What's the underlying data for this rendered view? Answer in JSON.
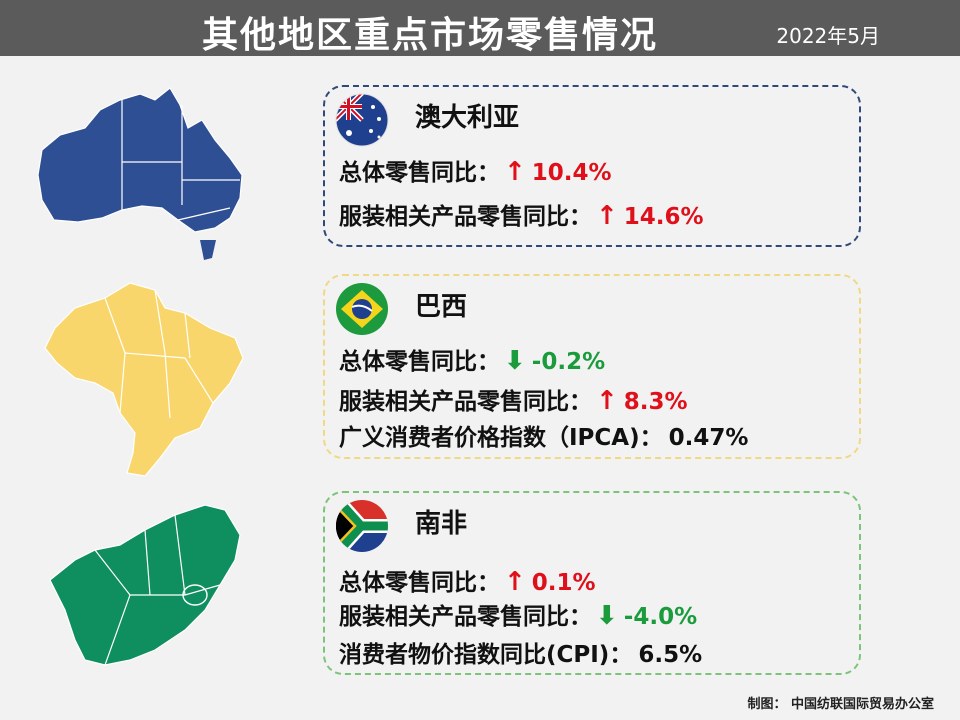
{
  "header": {
    "title": "其他地区重点市场零售情况",
    "date": "2022年5月"
  },
  "cards": {
    "australia": {
      "name": "澳大利亚",
      "lines": [
        {
          "label": "总体零售同比：",
          "arrow": "↑",
          "value": "10.4%"
        },
        {
          "label": "服装相关产品零售同比：",
          "arrow": "↑",
          "value": "14.6%"
        }
      ]
    },
    "brazil": {
      "name": "巴西",
      "lines": [
        {
          "label": "总体零售同比：",
          "arrow": "⬇",
          "value": "-0.2%"
        },
        {
          "label": "服装相关产品零售同比：",
          "arrow": "↑",
          "value": "8.3%"
        },
        {
          "label": "广义消费者价格指数（IPCA)：",
          "value": "0.47%"
        }
      ]
    },
    "south_africa": {
      "name": "南非",
      "lines": [
        {
          "label": "总体零售同比：",
          "arrow": "↑",
          "value": "0.1%"
        },
        {
          "label": "服装相关产品零售同比：",
          "arrow": "⬇",
          "value": "-4.0%"
        },
        {
          "label": "消费者物价指数同比(CPI)：",
          "value": "6.5%"
        }
      ]
    }
  },
  "colors": {
    "header_bg": "#5b5b5b",
    "up": "#e0101a",
    "down": "#1a9b3c",
    "australia_map": "#2f4f94",
    "brazil_map": "#f9d66b",
    "south_africa_map": "#0f8f5f"
  },
  "footer": {
    "credit": "制图： 中国纺联国际贸易办公室"
  }
}
